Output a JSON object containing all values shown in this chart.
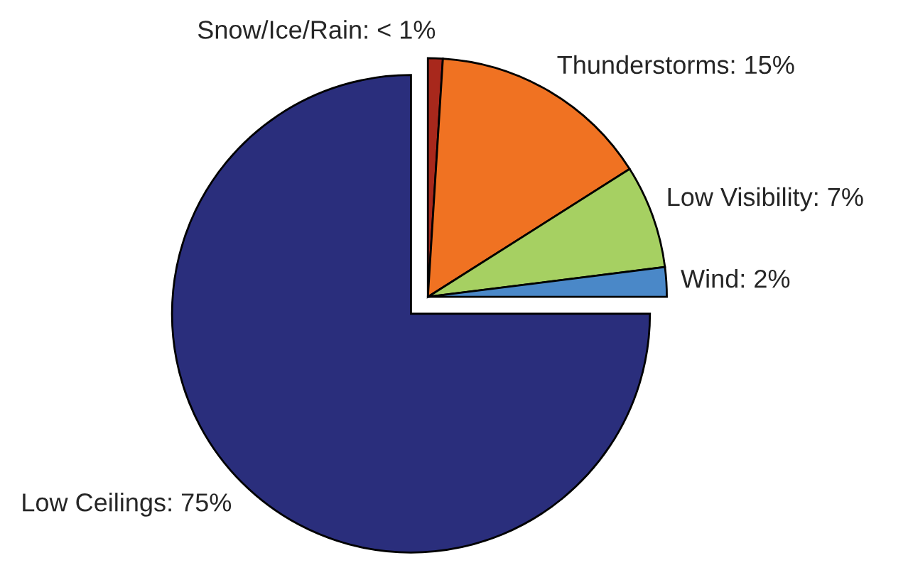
{
  "chart_data": {
    "type": "pie",
    "categories": [
      "Snow/Ice/Rain",
      "Thunderstorms",
      "Low Visibility",
      "Wind",
      "Low Ceilings"
    ],
    "values": [
      1,
      15,
      7,
      2,
      75
    ],
    "value_labels": [
      "< 1%",
      "15%",
      "7%",
      "2%",
      "75%"
    ],
    "colors": [
      "#a8281c",
      "#f07222",
      "#a6d062",
      "#4a88c8",
      "#2a2e7c"
    ]
  }
}
